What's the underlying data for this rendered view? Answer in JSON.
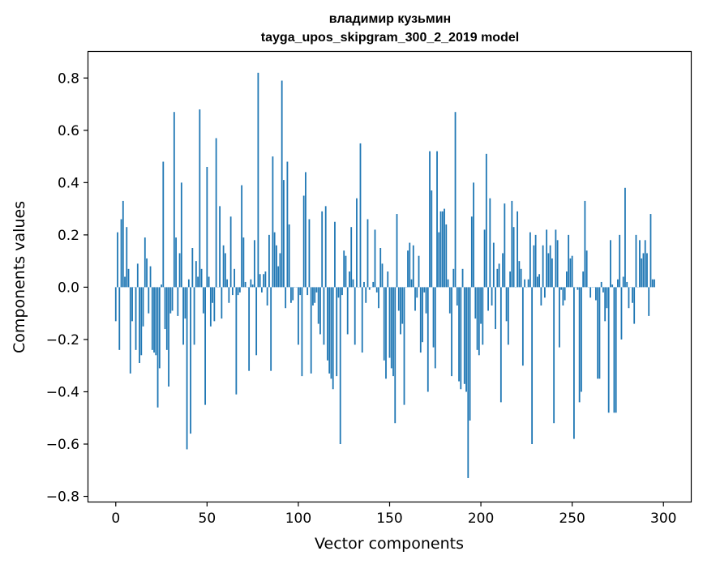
{
  "chart_data": {
    "type": "bar",
    "title": "владимир кузьмин",
    "subtitle": "tayga_upos_skipgram_300_2_2019 model",
    "xlabel": "Vector components",
    "ylabel": "Components values",
    "xlim": [
      -15,
      315
    ],
    "ylim": [
      -0.82,
      0.9
    ],
    "xticks": [
      0,
      50,
      100,
      150,
      200,
      250,
      300
    ],
    "yticks": [
      -0.8,
      -0.6,
      -0.4,
      -0.2,
      0.0,
      0.2,
      0.4,
      0.6,
      0.8
    ],
    "ytick_labels": [
      "−0.8",
      "−0.6",
      "−0.4",
      "−0.2",
      "0.0",
      "0.2",
      "0.4",
      "0.6",
      "0.8"
    ],
    "grid": false,
    "bar_color": "#1f77b4",
    "values": [
      -0.13,
      0.21,
      -0.24,
      0.26,
      0.33,
      0.04,
      0.23,
      0.07,
      -0.33,
      -0.13,
      0.0,
      -0.24,
      0.09,
      -0.29,
      -0.26,
      -0.15,
      0.19,
      0.11,
      -0.1,
      0.08,
      -0.24,
      -0.25,
      -0.26,
      -0.46,
      -0.31,
      0.01,
      0.48,
      -0.16,
      -0.24,
      -0.38,
      -0.1,
      -0.09,
      0.67,
      0.19,
      -0.11,
      0.13,
      0.4,
      -0.22,
      -0.12,
      -0.62,
      0.03,
      -0.56,
      0.15,
      -0.22,
      0.1,
      0.04,
      0.68,
      0.07,
      -0.1,
      -0.45,
      0.46,
      0.04,
      -0.15,
      -0.06,
      -0.13,
      0.57,
      0.0,
      0.31,
      -0.12,
      0.16,
      0.13,
      0.03,
      -0.06,
      0.27,
      -0.03,
      0.07,
      -0.41,
      -0.03,
      -0.02,
      0.39,
      0.19,
      0.02,
      0.0,
      -0.32,
      0.03,
      0.01,
      0.18,
      -0.26,
      0.82,
      0.05,
      -0.02,
      0.05,
      0.06,
      -0.07,
      0.2,
      -0.32,
      0.5,
      0.21,
      0.16,
      0.08,
      0.13,
      0.79,
      0.41,
      -0.08,
      0.48,
      0.24,
      -0.06,
      -0.05,
      0.0,
      0.0,
      -0.22,
      -0.03,
      -0.34,
      0.35,
      0.44,
      -0.03,
      0.26,
      -0.33,
      -0.07,
      -0.06,
      -0.02,
      -0.14,
      -0.18,
      0.29,
      -0.22,
      0.31,
      -0.28,
      -0.33,
      -0.35,
      -0.39,
      0.25,
      -0.34,
      -0.04,
      -0.6,
      -0.03,
      0.14,
      0.12,
      -0.18,
      0.06,
      0.23,
      0.03,
      -0.22,
      0.34,
      0.0,
      0.55,
      -0.25,
      0.02,
      -0.06,
      0.26,
      -0.01,
      0.0,
      0.02,
      0.22,
      -0.02,
      -0.08,
      0.15,
      0.09,
      -0.28,
      -0.35,
      0.06,
      -0.27,
      -0.31,
      -0.34,
      -0.52,
      0.28,
      -0.09,
      -0.18,
      -0.14,
      -0.45,
      0.0,
      0.14,
      0.17,
      0.03,
      0.16,
      -0.09,
      -0.04,
      0.12,
      -0.25,
      -0.21,
      -0.02,
      -0.1,
      -0.4,
      0.52,
      0.37,
      -0.23,
      -0.31,
      0.52,
      0.21,
      0.29,
      0.29,
      0.3,
      0.24,
      0.03,
      -0.1,
      -0.34,
      0.07,
      0.67,
      -0.07,
      -0.36,
      -0.39,
      0.07,
      -0.37,
      -0.4,
      -0.73,
      -0.51,
      0.27,
      0.4,
      -0.12,
      -0.24,
      -0.26,
      -0.14,
      -0.22,
      0.22,
      0.51,
      -0.09,
      0.34,
      -0.07,
      0.17,
      -0.16,
      0.07,
      0.09,
      -0.44,
      0.13,
      0.32,
      -0.13,
      -0.22,
      0.06,
      0.33,
      0.23,
      0.0,
      0.29,
      0.1,
      0.07,
      -0.3,
      0.03,
      0.0,
      0.03,
      0.21,
      -0.6,
      0.16,
      0.2,
      0.04,
      0.05,
      -0.07,
      0.16,
      -0.04,
      0.22,
      0.13,
      0.16,
      0.11,
      -0.52,
      0.22,
      0.18,
      -0.23,
      -0.01,
      -0.07,
      -0.05,
      0.06,
      0.2,
      0.11,
      0.12,
      -0.58,
      0.0,
      -0.01,
      -0.44,
      -0.4,
      0.06,
      0.33,
      0.14,
      0.0,
      -0.04,
      0.0,
      0.0,
      -0.05,
      -0.35,
      -0.35,
      0.02,
      -0.02,
      -0.13,
      -0.08,
      -0.48,
      0.18,
      0.01,
      -0.48,
      -0.48,
      0.03,
      0.2,
      -0.2,
      0.04,
      0.38,
      0.02,
      -0.08,
      0.0,
      -0.06,
      -0.14,
      0.2,
      0.0,
      0.18,
      0.11,
      0.13,
      0.18,
      0.13,
      -0.11,
      0.28,
      0.03,
      0.03
    ]
  }
}
